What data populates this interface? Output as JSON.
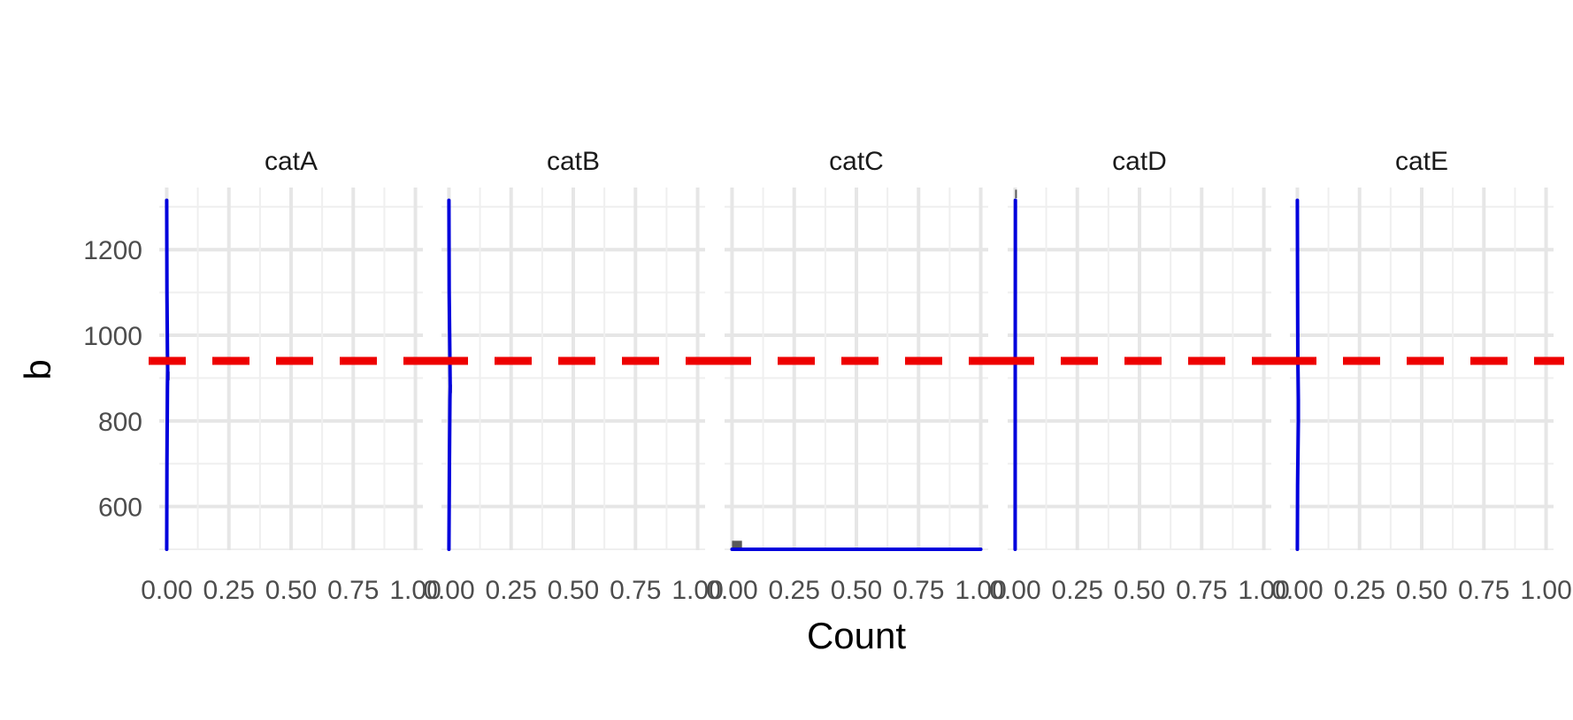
{
  "chart_data": {
    "type": "faceted-histogram-with-density",
    "title": "",
    "xlabel": "Count",
    "ylabel": "b",
    "ylim": [
      498,
      1345
    ],
    "xlim": [
      -0.03,
      1.03
    ],
    "y_ticks": [
      600,
      800,
      1000,
      1200
    ],
    "y_tick_labels": [
      "600",
      "800",
      "1000",
      "1200"
    ],
    "x_ticks": [
      0,
      0.25,
      0.5,
      0.75,
      1
    ],
    "x_tick_labels": [
      "0.00",
      "0.25",
      "0.50",
      "0.75",
      "1.00"
    ],
    "grid": true,
    "reference_line": {
      "y": 940,
      "color": "#ee0000",
      "style": "dashed"
    },
    "histogram_color": "#595959",
    "density_color": "#0000dd",
    "facets": [
      {
        "label": "catA",
        "histogram": [
          {
            "y0": 895,
            "y1": 915,
            "count": 0.012
          }
        ],
        "density": [
          [
            500,
            0.0
          ],
          [
            700,
            0.001
          ],
          [
            880,
            0.003
          ],
          [
            920,
            0.004
          ],
          [
            960,
            0.003
          ],
          [
            1100,
            0.001
          ],
          [
            1315,
            0.0
          ]
        ]
      },
      {
        "label": "catB",
        "histogram": [
          {
            "y0": 865,
            "y1": 885,
            "count": 0.012
          }
        ],
        "density": [
          [
            500,
            0.0
          ],
          [
            700,
            0.002
          ],
          [
            850,
            0.004
          ],
          [
            880,
            0.005
          ],
          [
            940,
            0.004
          ],
          [
            1100,
            0.001
          ],
          [
            1315,
            0.0
          ]
        ]
      },
      {
        "label": "catC",
        "histogram": [
          {
            "y0": 500,
            "y1": 520,
            "count": 0.04
          }
        ],
        "density": [
          [
            500,
            0.0
          ],
          [
            500,
            1.0
          ]
        ]
      },
      {
        "label": "catD",
        "histogram": [
          {
            "y0": 1320,
            "y1": 1340,
            "count": 0.004
          }
        ],
        "density": [
          [
            500,
            0.0
          ],
          [
            1000,
            0.0005
          ],
          [
            1315,
            0.001
          ]
        ]
      },
      {
        "label": "catE",
        "histogram": [],
        "density": [
          [
            500,
            0.0
          ],
          [
            650,
            0.001
          ],
          [
            800,
            0.004
          ],
          [
            850,
            0.004
          ],
          [
            950,
            0.002
          ],
          [
            1100,
            0.001
          ],
          [
            1315,
            0.0
          ]
        ]
      }
    ]
  }
}
